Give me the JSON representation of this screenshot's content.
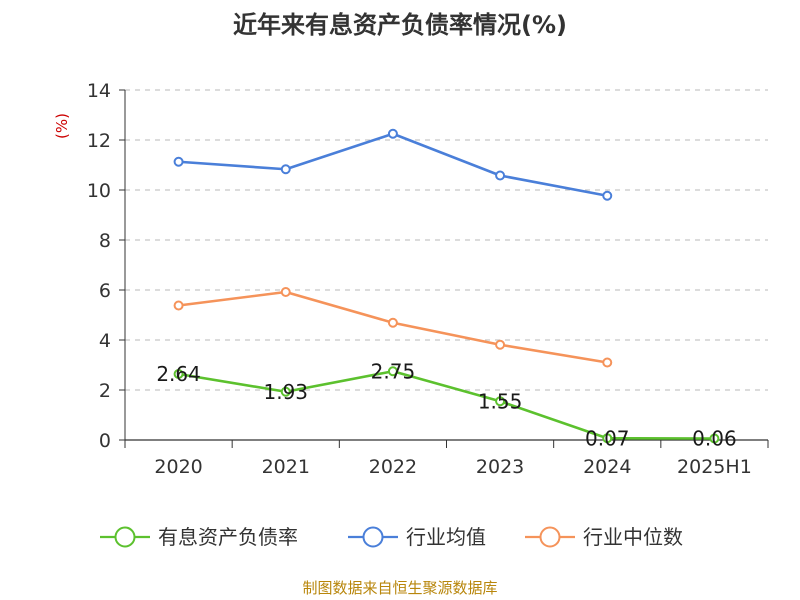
{
  "chart_data": {
    "type": "line",
    "title": "近年来有息资产负债率情况(%)",
    "ylabel": "(%)",
    "categories": [
      "2020",
      "2021",
      "2022",
      "2023",
      "2024",
      "2025H1"
    ],
    "yticks": [
      "0",
      "2",
      "4",
      "6",
      "8",
      "10",
      "12",
      "14"
    ],
    "ylim": [
      0,
      14
    ],
    "grid": true,
    "legend_position": "bottom",
    "series": [
      {
        "name": "有息资产负债率",
        "color": "#5cc12e",
        "values": [
          2.64,
          1.93,
          2.75,
          1.55,
          0.07,
          0.06
        ],
        "labels": [
          "2.64",
          "1.93",
          "2.75",
          "1.55",
          "0.07",
          "0.06"
        ]
      },
      {
        "name": "行业均值",
        "color": "#4a7fd9",
        "values": [
          11.13,
          10.83,
          12.25,
          10.58,
          9.77,
          null
        ]
      },
      {
        "name": "行业中位数",
        "color": "#f5935a",
        "values": [
          5.38,
          5.92,
          4.69,
          3.81,
          3.1,
          null
        ]
      }
    ],
    "source": "制图数据来自恒生聚源数据库"
  }
}
